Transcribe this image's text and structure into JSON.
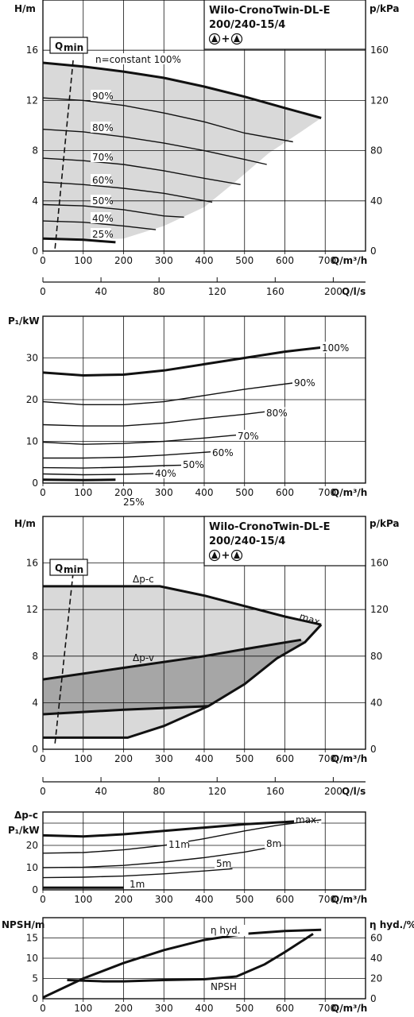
{
  "chart_data": [
    {
      "type": "line",
      "title": "Wilo-CronoTwin-DL-E",
      "subtitle": "200/240-15/4",
      "twin_label": "+",
      "ylabel": "H/m",
      "ylabel_right": "p/kPa",
      "xlabel": "Q/m³/h",
      "xlabel_secondary": "Q/l/s",
      "xlim": [
        0,
        800
      ],
      "ylim": [
        0,
        20
      ],
      "yticks": [
        "0",
        "4",
        "8",
        "12",
        "16"
      ],
      "yticks_right": [
        "0",
        "40",
        "80",
        "120",
        "160"
      ],
      "xticks": [
        "0",
        "100",
        "200",
        "300",
        "400",
        "500",
        "600",
        "700"
      ],
      "xticks_secondary": [
        "0",
        "40",
        "80",
        "120",
        "160",
        "200"
      ],
      "qmin_label": "Q",
      "qmin_sub": "min",
      "qmin_line": [
        [
          30,
          0.2
        ],
        [
          75,
          15.2
        ]
      ],
      "envelope": [
        [
          0,
          15
        ],
        [
          100,
          14.7
        ],
        [
          200,
          14.3
        ],
        [
          300,
          13.8
        ],
        [
          400,
          13.1
        ],
        [
          500,
          12.3
        ],
        [
          600,
          11.4
        ],
        [
          690,
          10.6
        ],
        [
          640,
          9.5
        ],
        [
          560,
          7.8
        ],
        [
          480,
          5.6
        ],
        [
          400,
          3.5
        ],
        [
          300,
          2.0
        ],
        [
          200,
          1.0
        ],
        [
          100,
          0.9
        ],
        [
          0,
          1.0
        ]
      ],
      "series": [
        {
          "name": "n=constant 100%",
          "bold": true,
          "points": [
            [
              0,
              15
            ],
            [
              100,
              14.7
            ],
            [
              200,
              14.3
            ],
            [
              300,
              13.8
            ],
            [
              400,
              13.1
            ],
            [
              500,
              12.3
            ],
            [
              600,
              11.4
            ],
            [
              690,
              10.6
            ]
          ]
        },
        {
          "name": "90%",
          "points": [
            [
              0,
              12.2
            ],
            [
              100,
              12.0
            ],
            [
              200,
              11.6
            ],
            [
              300,
              11.0
            ],
            [
              400,
              10.3
            ],
            [
              500,
              9.4
            ],
            [
              620,
              8.7
            ]
          ]
        },
        {
          "name": "80%",
          "points": [
            [
              0,
              9.7
            ],
            [
              100,
              9.5
            ],
            [
              200,
              9.1
            ],
            [
              300,
              8.6
            ],
            [
              400,
              8.0
            ],
            [
              500,
              7.3
            ],
            [
              555,
              6.9
            ]
          ]
        },
        {
          "name": "70%",
          "points": [
            [
              0,
              7.4
            ],
            [
              100,
              7.2
            ],
            [
              200,
              6.9
            ],
            [
              300,
              6.4
            ],
            [
              400,
              5.8
            ],
            [
              490,
              5.3
            ]
          ]
        },
        {
          "name": "60%",
          "points": [
            [
              0,
              5.5
            ],
            [
              100,
              5.3
            ],
            [
              200,
              5.0
            ],
            [
              300,
              4.6
            ],
            [
              420,
              3.9
            ]
          ]
        },
        {
          "name": "50%",
          "points": [
            [
              0,
              3.7
            ],
            [
              100,
              3.6
            ],
            [
              200,
              3.3
            ],
            [
              300,
              2.8
            ],
            [
              350,
              2.7
            ]
          ]
        },
        {
          "name": "40%",
          "points": [
            [
              0,
              2.4
            ],
            [
              100,
              2.3
            ],
            [
              200,
              2.0
            ],
            [
              280,
              1.7
            ]
          ]
        },
        {
          "name": "25%",
          "bold": true,
          "points": [
            [
              0,
              1.0
            ],
            [
              100,
              0.9
            ],
            [
              180,
              0.7
            ]
          ]
        }
      ]
    },
    {
      "type": "line",
      "ylabel": "P₁/kW",
      "xlabel": "Q/m³/h",
      "xlim": [
        0,
        800
      ],
      "ylim": [
        0,
        40
      ],
      "yticks": [
        "0",
        "10",
        "20",
        "30"
      ],
      "xticks": [
        "0",
        "100",
        "200",
        "300",
        "400",
        "500",
        "600",
        "700"
      ],
      "series": [
        {
          "name": "100%",
          "bold": true,
          "points": [
            [
              0,
              26.5
            ],
            [
              100,
              25.8
            ],
            [
              200,
              26.0
            ],
            [
              300,
              27.0
            ],
            [
              400,
              28.5
            ],
            [
              500,
              30.0
            ],
            [
              600,
              31.5
            ],
            [
              690,
              32.5
            ]
          ]
        },
        {
          "name": "90%",
          "points": [
            [
              0,
              19.5
            ],
            [
              100,
              18.8
            ],
            [
              200,
              18.8
            ],
            [
              300,
              19.5
            ],
            [
              400,
              21.0
            ],
            [
              500,
              22.5
            ],
            [
              620,
              24.0
            ]
          ]
        },
        {
          "name": "80%",
          "points": [
            [
              0,
              14.0
            ],
            [
              100,
              13.7
            ],
            [
              200,
              13.7
            ],
            [
              300,
              14.4
            ],
            [
              400,
              15.5
            ],
            [
              500,
              16.5
            ],
            [
              560,
              17.2
            ]
          ]
        },
        {
          "name": "70%",
          "points": [
            [
              0,
              9.8
            ],
            [
              100,
              9.3
            ],
            [
              200,
              9.5
            ],
            [
              300,
              10.0
            ],
            [
              400,
              10.8
            ],
            [
              480,
              11.5
            ]
          ]
        },
        {
          "name": "60%",
          "points": [
            [
              0,
              6.0
            ],
            [
              100,
              6.0
            ],
            [
              200,
              6.2
            ],
            [
              300,
              6.7
            ],
            [
              420,
              7.5
            ]
          ]
        },
        {
          "name": "50%",
          "points": [
            [
              0,
              3.7
            ],
            [
              100,
              3.6
            ],
            [
              200,
              3.8
            ],
            [
              300,
              4.2
            ],
            [
              350,
              4.3
            ]
          ]
        },
        {
          "name": "40%",
          "points": [
            [
              0,
              2.2
            ],
            [
              100,
              2.0
            ],
            [
              200,
              2.1
            ],
            [
              280,
              2.3
            ]
          ]
        },
        {
          "name": "25%",
          "bold": true,
          "points": [
            [
              0,
              0.8
            ],
            [
              100,
              0.7
            ],
            [
              180,
              0.8
            ]
          ]
        }
      ]
    },
    {
      "type": "area",
      "title": "Wilo-CronoTwin-DL-E",
      "subtitle": "200/240-15/4",
      "twin_label": "+",
      "ylabel": "H/m",
      "ylabel_right": "p/kPa",
      "xlabel": "Q/m³/h",
      "xlabel_secondary": "Q/l/s",
      "xlim": [
        0,
        800
      ],
      "ylim": [
        0,
        20
      ],
      "yticks": [
        "0",
        "4",
        "8",
        "12",
        "16"
      ],
      "yticks_right": [
        "0",
        "40",
        "80",
        "120",
        "160"
      ],
      "xticks": [
        "0",
        "100",
        "200",
        "300",
        "400",
        "500",
        "600",
        "700"
      ],
      "xticks_secondary": [
        "0",
        "40",
        "80",
        "120",
        "160",
        "200"
      ],
      "qmin_label": "Q",
      "qmin_sub": "min",
      "qmin_line": [
        [
          30,
          0.5
        ],
        [
          75,
          15.2
        ]
      ],
      "light_region": [
        [
          0,
          14
        ],
        [
          290,
          14
        ],
        [
          400,
          13.2
        ],
        [
          500,
          12.3
        ],
        [
          600,
          11.4
        ],
        [
          690,
          10.7
        ],
        [
          650,
          9.2
        ],
        [
          580,
          7.8
        ],
        [
          500,
          5.6
        ],
        [
          410,
          3.7
        ],
        [
          300,
          2.0
        ],
        [
          210,
          1.0
        ],
        [
          0,
          1.0
        ]
      ],
      "dark_region": [
        [
          0,
          6.0
        ],
        [
          200,
          7.0
        ],
        [
          400,
          8.0
        ],
        [
          500,
          8.6
        ],
        [
          640,
          9.4
        ],
        [
          650,
          9.2
        ],
        [
          580,
          7.8
        ],
        [
          500,
          5.6
        ],
        [
          410,
          3.7
        ],
        [
          200,
          3.4
        ],
        [
          0,
          3.0
        ]
      ],
      "series": [
        {
          "name": "Δp-c",
          "bold": true,
          "points": [
            [
              0,
              14
            ],
            [
              290,
              14
            ],
            [
              400,
              13.2
            ],
            [
              500,
              12.3
            ],
            [
              600,
              11.4
            ],
            [
              690,
              10.7
            ]
          ]
        },
        {
          "name": "Δp-v",
          "bold": true,
          "points": [
            [
              0,
              6.0
            ],
            [
              200,
              7.0
            ],
            [
              400,
              8.0
            ],
            [
              500,
              8.6
            ],
            [
              640,
              9.4
            ]
          ]
        },
        {
          "name": "",
          "bold": true,
          "points": [
            [
              0,
              3.0
            ],
            [
              200,
              3.4
            ],
            [
              410,
              3.7
            ]
          ]
        },
        {
          "name": "",
          "bold": true,
          "points": [
            [
              0,
              1.0
            ],
            [
              210,
              1.0
            ],
            [
              300,
              2.0
            ],
            [
              410,
              3.7
            ],
            [
              500,
              5.6
            ],
            [
              580,
              7.8
            ],
            [
              650,
              9.2
            ],
            [
              690,
              10.7
            ]
          ]
        }
      ],
      "max_label": "max."
    },
    {
      "type": "line",
      "ylabel": "P₁/kW",
      "ylabel_top": "Δp-c",
      "xlabel": "Q/m³/h",
      "xlim": [
        0,
        800
      ],
      "ylim": [
        0,
        35
      ],
      "yticks": [
        "0",
        "10",
        "20"
      ],
      "xticks": [
        "0",
        "100",
        "200",
        "300",
        "400",
        "500",
        "600",
        "700"
      ],
      "series": [
        {
          "name": "max.",
          "bold": true,
          "points": [
            [
              0,
              24.5
            ],
            [
              100,
              24.0
            ],
            [
              200,
              25.0
            ],
            [
              300,
              26.5
            ],
            [
              400,
              28.0
            ],
            [
              500,
              29.5
            ],
            [
              600,
              30.5
            ],
            [
              690,
              31.5
            ]
          ]
        },
        {
          "name": "11m",
          "points": [
            [
              0,
              16.5
            ],
            [
              100,
              16.8
            ],
            [
              200,
              18.0
            ],
            [
              300,
              20.0
            ],
            [
              400,
              23.0
            ],
            [
              500,
              26.5
            ],
            [
              580,
              29.0
            ],
            [
              690,
              31.5
            ]
          ]
        },
        {
          "name": "8m",
          "points": [
            [
              0,
              10.0
            ],
            [
              100,
              10.2
            ],
            [
              200,
              11.0
            ],
            [
              300,
              12.5
            ],
            [
              400,
              14.5
            ],
            [
              500,
              17.0
            ],
            [
              590,
              20.0
            ]
          ]
        },
        {
          "name": "5m",
          "points": [
            [
              0,
              5.5
            ],
            [
              100,
              5.7
            ],
            [
              200,
              6.2
            ],
            [
              300,
              7.2
            ],
            [
              400,
              8.5
            ],
            [
              470,
              9.5
            ]
          ]
        },
        {
          "name": "1m",
          "bold": true,
          "points": [
            [
              0,
              1.0
            ],
            [
              100,
              1.0
            ],
            [
              200,
              1.0
            ]
          ]
        }
      ]
    },
    {
      "type": "line",
      "ylabel": "NPSH/m",
      "ylabel_right": "η hyd./%",
      "xlabel": "Q/m³/h",
      "xlim": [
        0,
        800
      ],
      "ylim": [
        0,
        20
      ],
      "yticks": [
        "0",
        "5",
        "10",
        "15"
      ],
      "yticks_right": [
        "0",
        "20",
        "40",
        "60"
      ],
      "xticks": [
        "0",
        "100",
        "200",
        "300",
        "400",
        "500",
        "600",
        "700"
      ],
      "series": [
        {
          "name": "η hyd.",
          "bold": true,
          "points": [
            [
              0,
              0.3
            ],
            [
              100,
              5.0
            ],
            [
              200,
              8.8
            ],
            [
              300,
              12.0
            ],
            [
              400,
              14.5
            ],
            [
              500,
              16.0
            ],
            [
              600,
              16.7
            ],
            [
              690,
              17.0
            ]
          ]
        },
        {
          "name": "NPSH",
          "bold": true,
          "points": [
            [
              60,
              4.6
            ],
            [
              150,
              4.3
            ],
            [
              200,
              4.3
            ],
            [
              300,
              4.6
            ],
            [
              400,
              4.8
            ],
            [
              480,
              5.5
            ],
            [
              550,
              8.5
            ],
            [
              600,
              11.5
            ],
            [
              670,
              16.0
            ]
          ]
        }
      ]
    }
  ]
}
